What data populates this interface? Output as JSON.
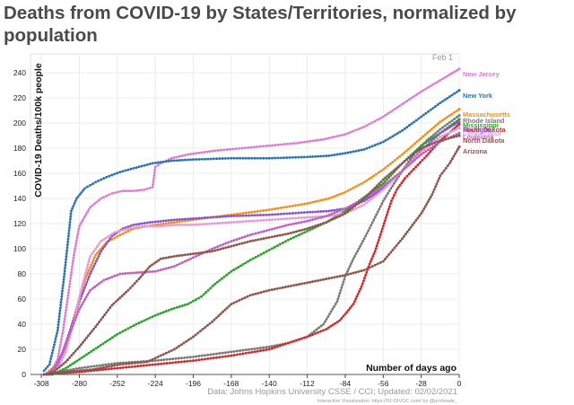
{
  "page": {
    "title": "Deaths from COVID-19 by States/Territories, normalized by population"
  },
  "chart_data": {
    "type": "line",
    "title": "Deaths from COVID-19 by States/Territories, normalized by population",
    "xlabel": "Number of days ago",
    "ylabel": "COVID-19 Deaths/100k people",
    "date_label": "Feb 1",
    "xlim": [
      -316,
      0
    ],
    "ylim": [
      0,
      255
    ],
    "xticks": [
      -308,
      -280,
      -252,
      -224,
      -196,
      -168,
      -140,
      -112,
      -84,
      -56,
      -28,
      0
    ],
    "yticks": [
      0,
      20,
      40,
      60,
      80,
      100,
      120,
      140,
      160,
      180,
      200,
      220,
      240
    ],
    "grid": true,
    "legend": "direct labels at right end of lines",
    "series": [
      {
        "name": "New Jersey",
        "color": "#d97ed0",
        "points": [
          [
            -306,
            0
          ],
          [
            -300,
            4
          ],
          [
            -296,
            12
          ],
          [
            -292,
            35
          ],
          [
            -288,
            65
          ],
          [
            -284,
            95
          ],
          [
            -280,
            118
          ],
          [
            -272,
            133
          ],
          [
            -264,
            140
          ],
          [
            -256,
            144
          ],
          [
            -248,
            146
          ],
          [
            -240,
            146
          ],
          [
            -232,
            147
          ],
          [
            -226,
            149
          ],
          [
            -224,
            165
          ],
          [
            -220,
            168
          ],
          [
            -212,
            172
          ],
          [
            -200,
            175
          ],
          [
            -180,
            178
          ],
          [
            -160,
            180
          ],
          [
            -140,
            182
          ],
          [
            -120,
            184
          ],
          [
            -100,
            187
          ],
          [
            -84,
            191
          ],
          [
            -70,
            197
          ],
          [
            -56,
            205
          ],
          [
            -42,
            215
          ],
          [
            -28,
            225
          ],
          [
            -14,
            234
          ],
          [
            0,
            243
          ]
        ]
      },
      {
        "name": "New York",
        "color": "#2f74b0",
        "points": [
          [
            -306,
            3
          ],
          [
            -302,
            8
          ],
          [
            -296,
            35
          ],
          [
            -291,
            80
          ],
          [
            -288,
            110
          ],
          [
            -286,
            130
          ],
          [
            -282,
            140
          ],
          [
            -276,
            148
          ],
          [
            -268,
            153
          ],
          [
            -260,
            157
          ],
          [
            -250,
            161
          ],
          [
            -240,
            164
          ],
          [
            -226,
            168
          ],
          [
            -212,
            170
          ],
          [
            -196,
            171
          ],
          [
            -168,
            172
          ],
          [
            -140,
            172
          ],
          [
            -112,
            173
          ],
          [
            -96,
            174
          ],
          [
            -84,
            176
          ],
          [
            -70,
            179
          ],
          [
            -56,
            185
          ],
          [
            -42,
            194
          ],
          [
            -28,
            205
          ],
          [
            -14,
            216
          ],
          [
            0,
            226
          ]
        ]
      },
      {
        "name": "Massachusetts",
        "color": "#f28f1e",
        "points": [
          [
            -302,
            3
          ],
          [
            -296,
            8
          ],
          [
            -290,
            22
          ],
          [
            -284,
            45
          ],
          [
            -276,
            75
          ],
          [
            -268,
            95
          ],
          [
            -260,
            105
          ],
          [
            -250,
            111
          ],
          [
            -240,
            116
          ],
          [
            -230,
            118
          ],
          [
            -210,
            121
          ],
          [
            -190,
            124
          ],
          [
            -168,
            127
          ],
          [
            -140,
            131
          ],
          [
            -112,
            136
          ],
          [
            -96,
            140
          ],
          [
            -84,
            145
          ],
          [
            -70,
            153
          ],
          [
            -56,
            163
          ],
          [
            -42,
            175
          ],
          [
            -28,
            188
          ],
          [
            -14,
            201
          ],
          [
            0,
            211
          ]
        ]
      },
      {
        "name": "Rhode Island",
        "color": "#7a7a7a",
        "points": [
          [
            -306,
            0
          ],
          [
            -280,
            5
          ],
          [
            -252,
            9
          ],
          [
            -224,
            11
          ],
          [
            -196,
            14
          ],
          [
            -168,
            18
          ],
          [
            -140,
            22
          ],
          [
            -126,
            25
          ],
          [
            -112,
            30
          ],
          [
            -100,
            40
          ],
          [
            -90,
            58
          ],
          [
            -84,
            78
          ],
          [
            -78,
            92
          ],
          [
            -70,
            108
          ],
          [
            -62,
            125
          ],
          [
            -56,
            138
          ],
          [
            -48,
            152
          ],
          [
            -40,
            165
          ],
          [
            -32,
            177
          ],
          [
            -24,
            186
          ],
          [
            -14,
            195
          ],
          [
            0,
            206
          ]
        ]
      },
      {
        "name": "Mississippi",
        "color": "#2ea02c",
        "points": [
          [
            -300,
            0
          ],
          [
            -290,
            5
          ],
          [
            -280,
            12
          ],
          [
            -266,
            22
          ],
          [
            -252,
            32
          ],
          [
            -238,
            40
          ],
          [
            -224,
            47
          ],
          [
            -212,
            52
          ],
          [
            -200,
            56
          ],
          [
            -190,
            62
          ],
          [
            -180,
            72
          ],
          [
            -168,
            82
          ],
          [
            -154,
            91
          ],
          [
            -140,
            99
          ],
          [
            -126,
            107
          ],
          [
            -112,
            114
          ],
          [
            -98,
            121
          ],
          [
            -84,
            130
          ],
          [
            -70,
            141
          ],
          [
            -56,
            152
          ],
          [
            -42,
            168
          ],
          [
            -28,
            182
          ],
          [
            -14,
            192
          ],
          [
            0,
            203
          ]
        ]
      },
      {
        "name": "South Dakota",
        "color": "#d12a2a",
        "points": [
          [
            -306,
            0
          ],
          [
            -280,
            2
          ],
          [
            -252,
            5
          ],
          [
            -224,
            8
          ],
          [
            -196,
            11
          ],
          [
            -168,
            15
          ],
          [
            -140,
            20
          ],
          [
            -126,
            25
          ],
          [
            -112,
            30
          ],
          [
            -98,
            36
          ],
          [
            -88,
            43
          ],
          [
            -84,
            48
          ],
          [
            -78,
            56
          ],
          [
            -72,
            70
          ],
          [
            -66,
            88
          ],
          [
            -62,
            98
          ],
          [
            -56,
            118
          ],
          [
            -50,
            138
          ],
          [
            -46,
            147
          ],
          [
            -40,
            156
          ],
          [
            -32,
            165
          ],
          [
            -24,
            174
          ],
          [
            -14,
            186
          ],
          [
            0,
            199
          ]
        ]
      },
      {
        "name": "Michigan",
        "color": "#8856c8",
        "points": [
          [
            -304,
            0
          ],
          [
            -298,
            5
          ],
          [
            -292,
            18
          ],
          [
            -286,
            38
          ],
          [
            -280,
            58
          ],
          [
            -272,
            80
          ],
          [
            -264,
            98
          ],
          [
            -256,
            110
          ],
          [
            -248,
            116
          ],
          [
            -240,
            119
          ],
          [
            -228,
            121
          ],
          [
            -210,
            123
          ],
          [
            -196,
            124
          ],
          [
            -168,
            126
          ],
          [
            -140,
            127
          ],
          [
            -112,
            129
          ],
          [
            -96,
            130
          ],
          [
            -84,
            132
          ],
          [
            -70,
            138
          ],
          [
            -56,
            148
          ],
          [
            -42,
            162
          ],
          [
            -28,
            178
          ],
          [
            -14,
            192
          ],
          [
            0,
            201
          ]
        ]
      },
      {
        "name": "Connecticut",
        "color": "#e69ad8",
        "points": [
          [
            -304,
            0
          ],
          [
            -296,
            5
          ],
          [
            -290,
            18
          ],
          [
            -284,
            42
          ],
          [
            -278,
            70
          ],
          [
            -272,
            94
          ],
          [
            -264,
            106
          ],
          [
            -254,
            113
          ],
          [
            -244,
            116
          ],
          [
            -232,
            118
          ],
          [
            -220,
            118
          ],
          [
            -208,
            119
          ],
          [
            -196,
            119
          ],
          [
            -182,
            120
          ],
          [
            -168,
            121
          ],
          [
            -140,
            123
          ],
          [
            -112,
            125
          ],
          [
            -96,
            126
          ],
          [
            -84,
            128
          ],
          [
            -70,
            135
          ],
          [
            -56,
            147
          ],
          [
            -42,
            162
          ],
          [
            -28,
            177
          ],
          [
            -14,
            189
          ],
          [
            0,
            196
          ]
        ]
      },
      {
        "name": "Louisiana",
        "color": "#c060c0",
        "points": [
          [
            -304,
            0
          ],
          [
            -296,
            8
          ],
          [
            -288,
            30
          ],
          [
            -280,
            52
          ],
          [
            -272,
            67
          ],
          [
            -262,
            75
          ],
          [
            -250,
            80
          ],
          [
            -238,
            81
          ],
          [
            -224,
            82
          ],
          [
            -210,
            86
          ],
          [
            -196,
            93
          ],
          [
            -182,
            100
          ],
          [
            -168,
            106
          ],
          [
            -154,
            111
          ],
          [
            -140,
            115
          ],
          [
            -126,
            119
          ],
          [
            -112,
            122
          ],
          [
            -98,
            126
          ],
          [
            -84,
            132
          ],
          [
            -70,
            140
          ],
          [
            -56,
            150
          ],
          [
            -42,
            162
          ],
          [
            -28,
            175
          ],
          [
            -14,
            185
          ],
          [
            0,
            192
          ]
        ]
      },
      {
        "name": "North Dakota",
        "color": "#8c564b",
        "points": [
          [
            -304,
            0
          ],
          [
            -298,
            3
          ],
          [
            -290,
            10
          ],
          [
            -280,
            22
          ],
          [
            -268,
            38
          ],
          [
            -256,
            55
          ],
          [
            -244,
            67
          ],
          [
            -236,
            76
          ],
          [
            -228,
            86
          ],
          [
            -220,
            92
          ],
          [
            -210,
            94
          ],
          [
            -196,
            96
          ],
          [
            -182,
            98
          ],
          [
            -168,
            102
          ],
          [
            -154,
            106
          ],
          [
            -140,
            109
          ],
          [
            -126,
            112
          ],
          [
            -112,
            116
          ],
          [
            -98,
            121
          ],
          [
            -84,
            128
          ],
          [
            -70,
            140
          ],
          [
            -56,
            155
          ],
          [
            -42,
            168
          ],
          [
            -28,
            180
          ],
          [
            -14,
            186
          ],
          [
            0,
            190
          ]
        ]
      },
      {
        "name": "Arizona",
        "color": "#8c564b",
        "points": [
          [
            -302,
            0
          ],
          [
            -290,
            2
          ],
          [
            -270,
            4
          ],
          [
            -250,
            8
          ],
          [
            -230,
            10
          ],
          [
            -210,
            20
          ],
          [
            -196,
            30
          ],
          [
            -182,
            42
          ],
          [
            -168,
            56
          ],
          [
            -154,
            63
          ],
          [
            -140,
            67
          ],
          [
            -126,
            70
          ],
          [
            -112,
            73
          ],
          [
            -98,
            76
          ],
          [
            -84,
            79
          ],
          [
            -70,
            83
          ],
          [
            -56,
            90
          ],
          [
            -42,
            108
          ],
          [
            -28,
            128
          ],
          [
            -20,
            143
          ],
          [
            -14,
            158
          ],
          [
            -7,
            168
          ],
          [
            0,
            181
          ]
        ]
      }
    ]
  },
  "footer": {
    "source": "Data: Johns Hopkins University CSSE / CCI; Updated: 02/02/2021",
    "credit": "Interactive Visualization: https://91-DIVOC.com/ by @profwade_"
  }
}
